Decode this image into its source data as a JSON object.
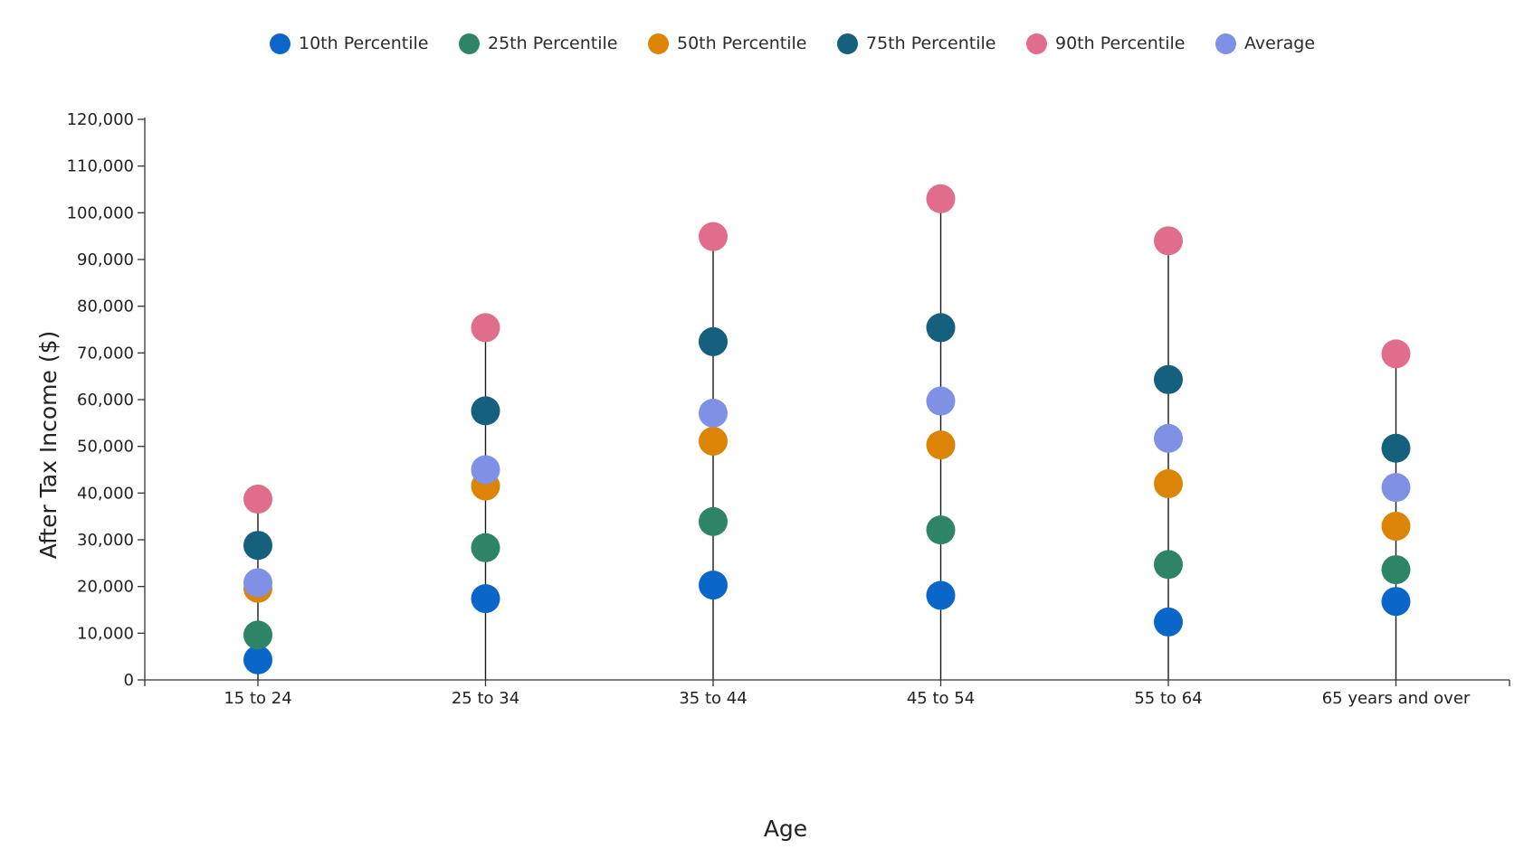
{
  "chart_data": {
    "type": "scatter",
    "title": "",
    "xlabel": "Age",
    "ylabel": "After Tax Income ($)",
    "ylim": [
      0,
      120000
    ],
    "y_ticks": [
      "0",
      "10,000",
      "20,000",
      "30,000",
      "40,000",
      "50,000",
      "60,000",
      "70,000",
      "80,000",
      "90,000",
      "100,000",
      "110,000",
      "120,000"
    ],
    "y_tick_values": [
      0,
      10000,
      20000,
      30000,
      40000,
      50000,
      60000,
      70000,
      80000,
      90000,
      100000,
      110000,
      120000
    ],
    "categories": [
      "15 to 24",
      "25 to 34",
      "35 to 44",
      "45 to 54",
      "55 to 64",
      "65 years and over"
    ],
    "grid": false,
    "legend_position": "top",
    "series": [
      {
        "name": "10th Percentile",
        "color": "#0b66c9",
        "values": [
          4300,
          17400,
          20300,
          18100,
          12400,
          16800
        ]
      },
      {
        "name": "25th Percentile",
        "color": "#2e8467",
        "values": [
          9600,
          28300,
          33900,
          32100,
          24700,
          23600
        ]
      },
      {
        "name": "50th Percentile",
        "color": "#dc8405",
        "values": [
          19600,
          41500,
          51100,
          50300,
          42000,
          32900
        ]
      },
      {
        "name": "75th Percentile",
        "color": "#14607d",
        "values": [
          28800,
          57600,
          72400,
          75400,
          64300,
          49600
        ]
      },
      {
        "name": "90th Percentile",
        "color": "#e16d8c",
        "values": [
          38700,
          75400,
          94900,
          103000,
          94000,
          69800
        ]
      },
      {
        "name": "Average",
        "color": "#7f90e5",
        "values": [
          20800,
          45000,
          57100,
          59700,
          51700,
          41200
        ]
      }
    ]
  }
}
